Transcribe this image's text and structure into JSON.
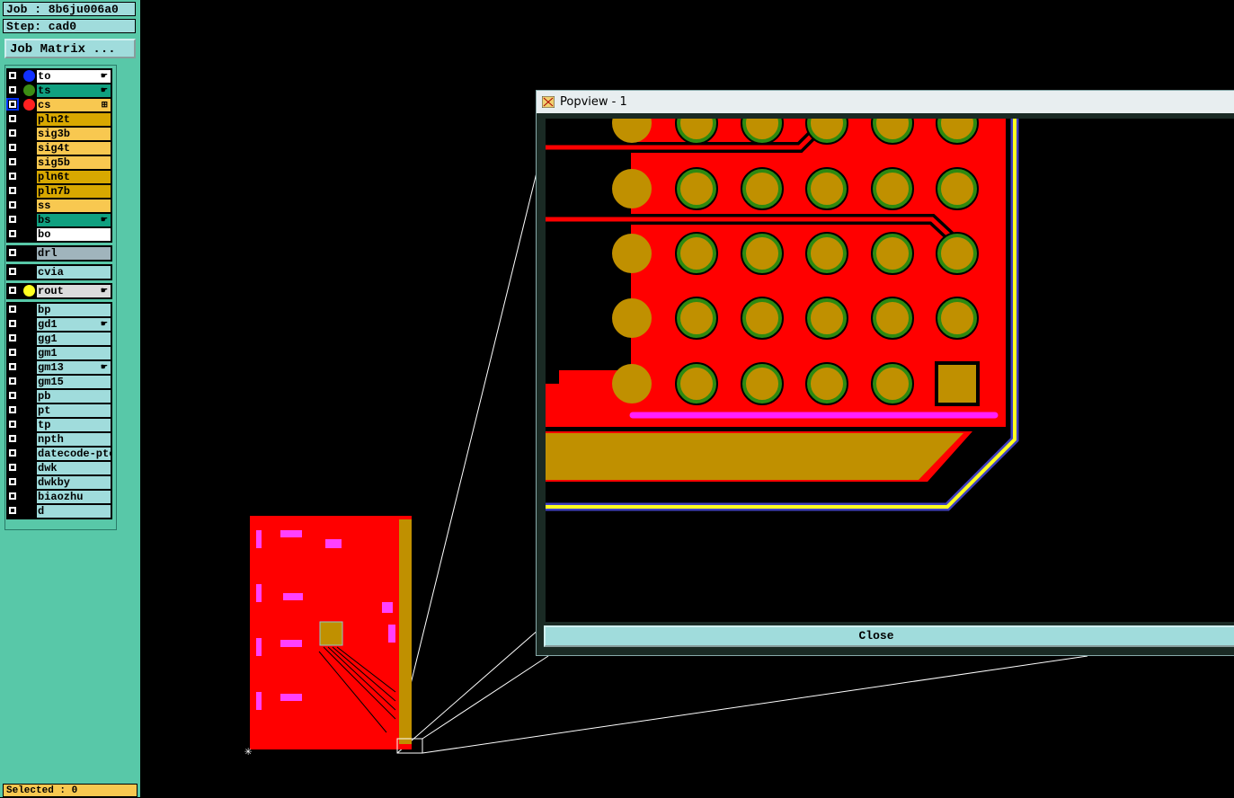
{
  "job": "Job : 8b6ju006a0",
  "step": "Step: cad0",
  "job_matrix": "Job Matrix ...",
  "layers": [
    {
      "name": "to",
      "bg": "#ffffff",
      "dot": "#1030ff",
      "icon": "hand"
    },
    {
      "name": "ts",
      "bg": "#10a080",
      "dot": "#3c8c14",
      "icon": "hand"
    },
    {
      "name": "cs",
      "bg": "#f8c850",
      "dot": "#ff2020",
      "icon": "grid",
      "selected": true
    },
    {
      "name": "pln2t",
      "bg": "#d8a800"
    },
    {
      "name": "sig3b",
      "bg": "#f8c850"
    },
    {
      "name": "sig4t",
      "bg": "#f8c850"
    },
    {
      "name": "sig5b",
      "bg": "#f8c850"
    },
    {
      "name": "pln6t",
      "bg": "#d8a800"
    },
    {
      "name": "pln7b",
      "bg": "#d8a800"
    },
    {
      "name": "ss",
      "bg": "#f8c850"
    },
    {
      "name": "bs",
      "bg": "#10a080",
      "icon": "hand"
    },
    {
      "name": "bo",
      "bg": "#ffffff"
    }
  ],
  "drill_layers": [
    {
      "name": "drl",
      "bg": "#a0b4bc"
    }
  ],
  "via_layers": [
    {
      "name": "cvia",
      "bg": "#a0dcdc"
    }
  ],
  "rout_layers": [
    {
      "name": "rout",
      "bg": "#dcdcdc",
      "dot": "#ffff20",
      "icon": "hand"
    }
  ],
  "doc_layers": [
    {
      "name": "bp"
    },
    {
      "name": "gd1",
      "icon": "hand"
    },
    {
      "name": "gg1"
    },
    {
      "name": "gm1"
    },
    {
      "name": "gm13",
      "icon": "hand"
    },
    {
      "name": "gm15"
    },
    {
      "name": "pb"
    },
    {
      "name": "pt"
    },
    {
      "name": "tp"
    },
    {
      "name": "npth"
    },
    {
      "name": "datecode-ptc"
    },
    {
      "name": "dwk"
    },
    {
      "name": "dwkby"
    },
    {
      "name": "biaozhu"
    },
    {
      "name": "d"
    }
  ],
  "selected": "Selected : 0",
  "popview": {
    "title": "Popview - 1",
    "close": "Close"
  },
  "colors": {
    "copper": "#ff0000",
    "pad": "#c09000",
    "pad_ring": "#2e8a10",
    "outline": "#ffff20",
    "outline2": "#4040c0",
    "silk": "#ff20ff"
  }
}
